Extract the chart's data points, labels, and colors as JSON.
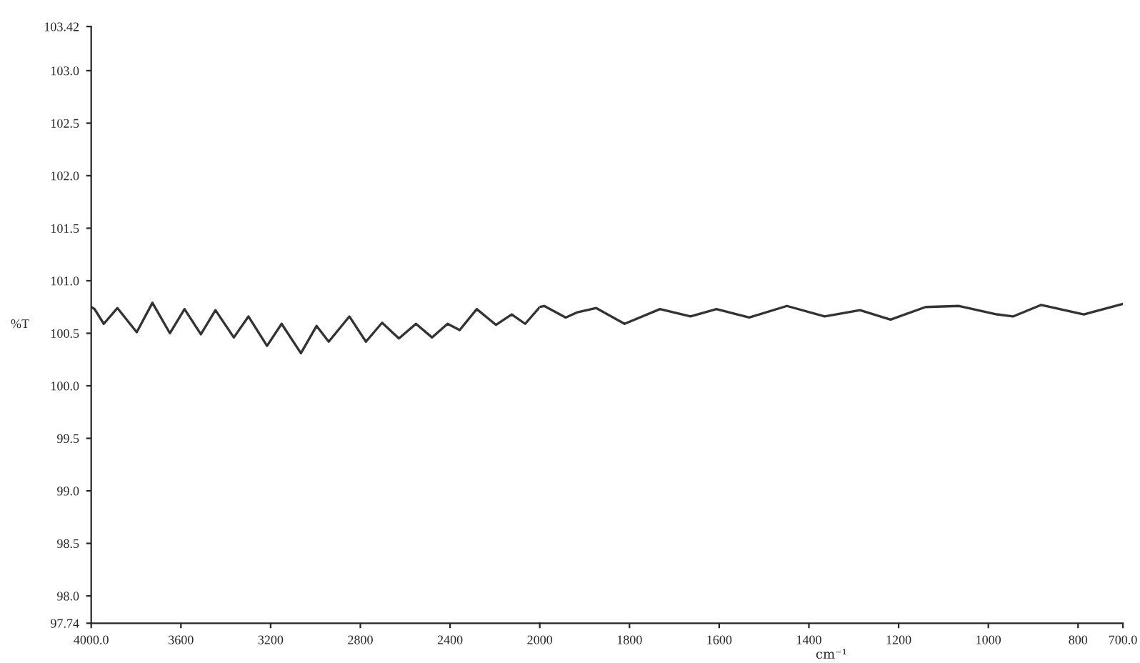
{
  "chart_data": [
    {
      "type": "line",
      "ylabel": "%T",
      "x": [
        4000,
        3985,
        3944,
        3883,
        3797,
        3727,
        3649,
        3584,
        3511,
        3446,
        3364,
        3299,
        3216,
        3151,
        3065,
        2995,
        2941,
        2849,
        2775,
        2703,
        2628,
        2552,
        2480,
        2411,
        2357,
        2281,
        2195,
        2125,
        2065,
        2000
      ],
      "series": [
        {
          "color": "#333333",
          "values": [
            100.75,
            100.73,
            100.59,
            100.74,
            100.51,
            100.79,
            100.5,
            100.73,
            100.49,
            100.72,
            100.46,
            100.66,
            100.38,
            100.59,
            100.31,
            100.57,
            100.42,
            100.66,
            100.42,
            100.6,
            100.45,
            100.59,
            100.46,
            100.59,
            100.53,
            100.73,
            100.58,
            100.68,
            100.59,
            100.75
          ]
        }
      ],
      "xlim": [
        4000,
        2000
      ],
      "xticks": [
        {
          "value": 4000,
          "label": "4000.0"
        },
        3600,
        3200,
        2800,
        2400,
        2000
      ],
      "ylim": [
        97.74,
        103.42
      ],
      "yticks": [
        97.74,
        {
          "value": 98,
          "label": "98.0"
        },
        98.5,
        {
          "value": 99,
          "label": "99.0"
        },
        99.5,
        {
          "value": 100,
          "label": "100.0"
        },
        100.5,
        {
          "value": 101,
          "label": "101.0"
        },
        101.5,
        {
          "value": 102,
          "label": "102.0"
        },
        102.5,
        {
          "value": 103,
          "label": "103.0"
        },
        103.42
      ],
      "grid": false,
      "line_style": "solid"
    },
    {
      "type": "line",
      "xlabel": "cm⁻¹",
      "x": [
        2000,
        1990,
        1942,
        1916,
        1874,
        1811,
        1732,
        1664,
        1606,
        1533,
        1449,
        1365,
        1286,
        1218,
        1140,
        1065,
        981,
        945,
        882,
        787,
        700
      ],
      "series": [
        {
          "color": "#333333",
          "values": [
            100.75,
            100.76,
            100.65,
            100.7,
            100.74,
            100.59,
            100.73,
            100.66,
            100.73,
            100.65,
            100.76,
            100.66,
            100.72,
            100.63,
            100.75,
            100.76,
            100.68,
            100.66,
            100.77,
            100.68,
            100.78
          ]
        }
      ],
      "xlim": [
        2000,
        700
      ],
      "xticks": [
        1800,
        1600,
        1400,
        1200,
        1000,
        800,
        {
          "value": 700,
          "label": "700.0"
        }
      ],
      "ylim": [
        97.74,
        103.42
      ],
      "tick_labels": "x",
      "grid": false,
      "line_style": "solid"
    }
  ]
}
